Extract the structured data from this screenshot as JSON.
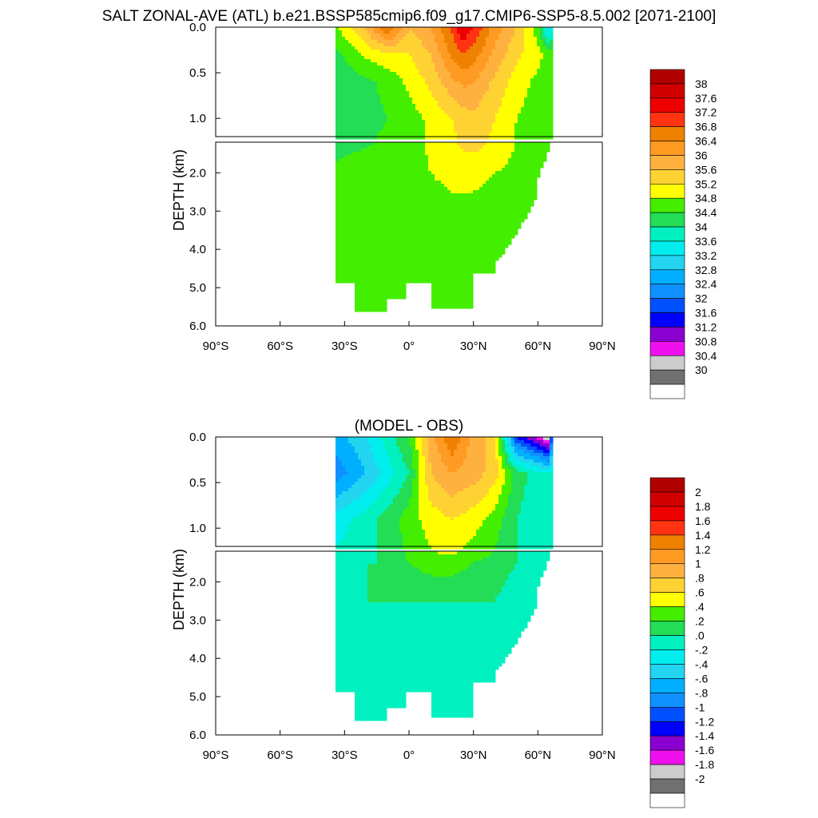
{
  "figure_title": "SALT ZONAL-AVE (ATL) b.e21.BSSP585cmip6.f09_g17.CMIP6-SSP5-8.5.002 [2071-2100]",
  "chart_data": [
    {
      "type": "heatmap",
      "title": "",
      "xlabel": "",
      "ylabel": "DEPTH (km)",
      "xlim": [
        -90,
        90
      ],
      "x_ticks": [
        -90,
        -60,
        -30,
        0,
        30,
        60,
        90
      ],
      "x_tick_labels": [
        "90°S",
        "60°S",
        "30°S",
        "0°",
        "30°N",
        "60°N",
        "90°N"
      ],
      "ylim": [
        0,
        6
      ],
      "y_ticks_upper_km": [
        0.0,
        0.5,
        1.0
      ],
      "y_ticks_upper_labels": [
        "0.0",
        "0.5",
        "1.0"
      ],
      "y_ticks_lower_km": [
        2.0,
        3.0,
        4.0,
        5.0,
        6.0
      ],
      "y_ticks_lower_labels": [
        "2.0",
        "3.0",
        "4.0",
        "5.0",
        "6.0"
      ],
      "upper_panel_depth_km": [
        0,
        1.2
      ],
      "lower_panel_depth_km": [
        1.2,
        6
      ],
      "data_lat_range": [
        -34,
        67
      ],
      "colorbar_labels": [
        "38",
        "37.6",
        "37.2",
        "36.8",
        "36.4",
        "36",
        "35.6",
        "35.2",
        "34.8",
        "34.4",
        "34",
        "33.6",
        "33.2",
        "32.8",
        "32.4",
        "32",
        "31.6",
        "31.2",
        "30.8",
        "30.4",
        "30"
      ],
      "colorbar_colors": [
        "#b00000",
        "#d00000",
        "#ee0000",
        "#ff3311",
        "#ef8100",
        "#ff9a22",
        "#ffb140",
        "#ffd234",
        "#ffff00",
        "#44ee00",
        "#22dd55",
        "#00f0c0",
        "#00eeee",
        "#22d4f0",
        "#00b0ff",
        "#1090ff",
        "#0050ff",
        "#0000ff",
        "#8a00d0",
        "#ee11ee",
        "#cccccc",
        "#707070",
        "#ffffff"
      ],
      "series": [
        {
          "depth_km": 0.0,
          "lat": [
            -33,
            -20,
            -10,
            0,
            10,
            20,
            25,
            30,
            40,
            50,
            60,
            65,
            67
          ],
          "values": [
            35.2,
            36.1,
            37.3,
            36.0,
            36.4,
            37.3,
            38.0,
            37.6,
            36.6,
            36.0,
            35.0,
            33.4,
            34.2
          ]
        },
        {
          "depth_km": 0.3,
          "lat": [
            -33,
            -20,
            -10,
            0,
            10,
            20,
            25,
            30,
            40,
            50,
            60,
            65,
            67
          ],
          "values": [
            34.7,
            35.3,
            35.5,
            35.6,
            36.0,
            36.9,
            37.2,
            37.0,
            36.3,
            35.7,
            35.3,
            35.1,
            35.0
          ]
        },
        {
          "depth_km": 0.6,
          "lat": [
            -33,
            -20,
            -10,
            0,
            10,
            20,
            25,
            30,
            40,
            50,
            60,
            65,
            67
          ],
          "values": [
            34.5,
            34.7,
            34.9,
            35.3,
            35.7,
            36.3,
            36.5,
            36.4,
            35.9,
            35.4,
            35.1,
            35.0,
            35.0
          ]
        },
        {
          "depth_km": 1.0,
          "lat": [
            -33,
            -20,
            -10,
            0,
            10,
            20,
            25,
            30,
            40,
            50,
            60,
            65,
            67
          ],
          "values": [
            34.6,
            34.7,
            34.8,
            35.0,
            35.3,
            35.6,
            35.8,
            35.9,
            35.6,
            35.2,
            35.0,
            35.0,
            35.0
          ]
        },
        {
          "depth_km": 2.0,
          "lat": [
            -33,
            -20,
            -10,
            0,
            10,
            20,
            30,
            40,
            50,
            60
          ],
          "values": [
            34.9,
            35.0,
            35.0,
            35.0,
            35.2,
            35.3,
            35.3,
            35.2,
            35.1,
            35.0
          ]
        },
        {
          "depth_km": 4.0,
          "lat": [
            -33,
            -20,
            -10,
            0,
            10,
            20,
            30,
            40,
            50
          ],
          "values": [
            34.9,
            34.9,
            34.9,
            34.9,
            34.9,
            34.9,
            34.9,
            34.9,
            34.9
          ]
        }
      ]
    },
    {
      "type": "heatmap",
      "title": "(MODEL - OBS)",
      "xlabel": "",
      "ylabel": "DEPTH (km)",
      "xlim": [
        -90,
        90
      ],
      "x_ticks": [
        -90,
        -60,
        -30,
        0,
        30,
        60,
        90
      ],
      "x_tick_labels": [
        "90°S",
        "60°S",
        "30°S",
        "0°",
        "30°N",
        "60°N",
        "90°N"
      ],
      "ylim": [
        0,
        6
      ],
      "y_ticks_upper_km": [
        0.0,
        0.5,
        1.0
      ],
      "y_ticks_upper_labels": [
        "0.0",
        "0.5",
        "1.0"
      ],
      "y_ticks_lower_km": [
        2.0,
        3.0,
        4.0,
        5.0,
        6.0
      ],
      "y_ticks_lower_labels": [
        "2.0",
        "3.0",
        "4.0",
        "5.0",
        "6.0"
      ],
      "upper_panel_depth_km": [
        0,
        1.2
      ],
      "lower_panel_depth_km": [
        1.2,
        6
      ],
      "data_lat_range": [
        -34,
        67
      ],
      "colorbar_labels": [
        "2",
        "1.8",
        "1.6",
        "1.4",
        "1.2",
        "1",
        ".8",
        ".6",
        ".4",
        ".2",
        ".0",
        "-.2",
        "-.4",
        "-.6",
        "-.8",
        "-1",
        "-1.2",
        "-1.4",
        "-1.6",
        "-1.8",
        "-2"
      ],
      "colorbar_colors": [
        "#b00000",
        "#d00000",
        "#ee0000",
        "#ff3311",
        "#ef8100",
        "#ff9a22",
        "#ffb140",
        "#ffd234",
        "#ffff00",
        "#44ee00",
        "#22dd55",
        "#00f0c0",
        "#00eeee",
        "#22d4f0",
        "#00b0ff",
        "#1090ff",
        "#0050ff",
        "#0000ff",
        "#8a00d0",
        "#ee11ee",
        "#cccccc",
        "#707070",
        "#ffffff"
      ],
      "series": [
        {
          "depth_km": 0.0,
          "lat": [
            -33,
            -20,
            -10,
            0,
            10,
            20,
            30,
            40,
            50,
            60,
            65,
            67
          ],
          "values": [
            -0.5,
            -0.2,
            0.1,
            0.4,
            1.1,
            1.6,
            1.1,
            0.9,
            -1.0,
            -1.5,
            -1.8,
            -0.4
          ]
        },
        {
          "depth_km": 0.4,
          "lat": [
            -33,
            -20,
            -10,
            0,
            10,
            20,
            30,
            40,
            50,
            60,
            65,
            67
          ],
          "values": [
            -0.7,
            -0.4,
            -0.1,
            0.2,
            1.0,
            1.2,
            1.1,
            0.9,
            0.3,
            0.1,
            0.0,
            0.1
          ]
        },
        {
          "depth_km": 0.9,
          "lat": [
            -33,
            -20,
            -10,
            0,
            10,
            20,
            30,
            40,
            50,
            60,
            65,
            67
          ],
          "values": [
            -0.1,
            0.1,
            0.3,
            0.5,
            0.7,
            0.8,
            0.7,
            0.5,
            0.2,
            0.1,
            0.1,
            0.1
          ]
        },
        {
          "depth_km": 1.5,
          "lat": [
            -33,
            -20,
            -10,
            0,
            10,
            20,
            30,
            40,
            50,
            60
          ],
          "values": [
            0.1,
            0.2,
            0.2,
            0.4,
            0.5,
            0.5,
            0.4,
            0.3,
            0.2,
            0.1
          ]
        },
        {
          "depth_km": 2.5,
          "lat": [
            -33,
            -20,
            -10,
            0,
            10,
            20,
            30,
            40,
            50,
            60
          ],
          "values": [
            0.2,
            0.2,
            0.2,
            0.2,
            0.2,
            0.2,
            0.2,
            0.2,
            0.1,
            0.1
          ]
        },
        {
          "depth_km": 4.0,
          "lat": [
            -33,
            -20,
            -10,
            0,
            10,
            20,
            30,
            40,
            50
          ],
          "values": [
            0.1,
            0.1,
            0.1,
            0.2,
            0.1,
            0.1,
            0.1,
            0.1,
            0.1
          ]
        }
      ]
    }
  ]
}
